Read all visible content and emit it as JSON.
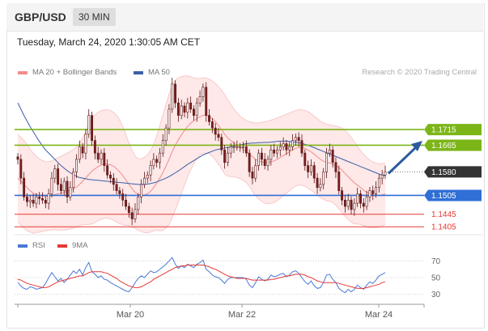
{
  "header": {
    "symbol": "GBP/USD",
    "timeframe": "30 MIN",
    "datetime": "Tuesday, March 24, 2020 1:30:05 AM CET"
  },
  "legend": {
    "ma20": "MA 20 + Bollinger Bands",
    "ma50": "MA 50",
    "credit": "Research © 2020 Trading Central"
  },
  "rsi_legend": {
    "rsi": "RSI",
    "ma9": "9MA"
  },
  "colors": {
    "resistance": "#7cb518",
    "pivot": "#2f6fd6",
    "support": "#e53935",
    "current": "#333333",
    "bollinger_fill": "#fde0e0",
    "ma20": "#f28b8b",
    "ma50": "#3b5fa8",
    "up_candle": "#ffffff",
    "down_candle": "#7a1f1f",
    "rsi": "#4a78d6",
    "rsi_ma": "#e53935",
    "arrow": "#2c5aa0"
  },
  "chart_data": [
    {
      "type": "candlestick",
      "name": "price",
      "ylim": [
        1.139,
        1.187
      ],
      "x_ticks": [
        "Mar 20",
        "Mar 22",
        "Mar 24"
      ],
      "levels": [
        {
          "value": 1.1715,
          "kind": "resistance",
          "label": "1.1715"
        },
        {
          "value": 1.1665,
          "kind": "resistance",
          "label": "1.1665"
        },
        {
          "value": 1.158,
          "kind": "current",
          "label": "1.1580"
        },
        {
          "value": 1.1505,
          "kind": "pivot",
          "label": "1.1505"
        },
        {
          "value": 1.1445,
          "kind": "support",
          "label": "1.1445"
        },
        {
          "value": 1.1405,
          "kind": "support",
          "label": "1.1405"
        }
      ],
      "close": [
        1.162,
        1.156,
        1.15,
        1.1485,
        1.149,
        1.148,
        1.15,
        1.1495,
        1.149,
        1.148,
        1.151,
        1.156,
        1.159,
        1.154,
        1.152,
        1.155,
        1.15,
        1.153,
        1.158,
        1.162,
        1.166,
        1.164,
        1.17,
        1.176,
        1.168,
        1.164,
        1.162,
        1.164,
        1.16,
        1.157,
        1.156,
        1.154,
        1.152,
        1.151,
        1.149,
        1.147,
        1.145,
        1.143,
        1.146,
        1.15,
        1.154,
        1.156,
        1.157,
        1.16,
        1.162,
        1.161,
        1.164,
        1.168,
        1.172,
        1.178,
        1.186,
        1.18,
        1.176,
        1.179,
        1.177,
        1.18,
        1.178,
        1.176,
        1.18,
        1.182,
        1.185,
        1.176,
        1.174,
        1.172,
        1.17,
        1.169,
        1.165,
        1.161,
        1.164,
        1.166,
        1.166,
        1.166,
        1.166,
        1.166,
        1.164,
        1.158,
        1.156,
        1.16,
        1.164,
        1.162,
        1.16,
        1.162,
        1.165,
        1.164,
        1.165,
        1.166,
        1.167,
        1.165,
        1.166,
        1.168,
        1.169,
        1.168,
        1.164,
        1.16,
        1.158,
        1.16,
        1.156,
        1.153,
        1.154,
        1.158,
        1.164,
        1.165,
        1.161,
        1.158,
        1.152,
        1.149,
        1.147,
        1.149,
        1.146,
        1.148,
        1.151,
        1.148,
        1.147,
        1.15,
        1.152,
        1.151,
        1.153,
        1.156,
        1.157,
        1.158
      ],
      "ma20": [
        1.156,
        1.155,
        1.154,
        1.153,
        1.152,
        1.1512,
        1.1508,
        1.1505,
        1.1503,
        1.1502,
        1.1503,
        1.1505,
        1.1508,
        1.151,
        1.1512,
        1.1515,
        1.1518,
        1.1522,
        1.1526,
        1.1532,
        1.154,
        1.155,
        1.156,
        1.1572,
        1.1582,
        1.159,
        1.1597,
        1.1602,
        1.1605,
        1.1605,
        1.1603,
        1.1598,
        1.159,
        1.158,
        1.1568,
        1.1555,
        1.154,
        1.1526,
        1.1515,
        1.1508,
        1.1506,
        1.1506,
        1.151,
        1.1518,
        1.153,
        1.1545,
        1.156,
        1.1578,
        1.1598,
        1.162,
        1.1645,
        1.1665,
        1.1682,
        1.1698,
        1.1712,
        1.1725,
        1.1735,
        1.1743,
        1.175,
        1.1756,
        1.176,
        1.176,
        1.1757,
        1.175,
        1.174,
        1.1728,
        1.1715,
        1.17,
        1.1688,
        1.168,
        1.1672,
        1.1665,
        1.1658,
        1.1652,
        1.1645,
        1.1637,
        1.1628,
        1.162,
        1.1615,
        1.1612,
        1.161,
        1.161,
        1.1612,
        1.1615,
        1.162,
        1.1626,
        1.1632,
        1.1638,
        1.1644,
        1.165,
        1.1655,
        1.1658,
        1.1658,
        1.1655,
        1.165,
        1.1644,
        1.1636,
        1.1628,
        1.162,
        1.1614,
        1.161,
        1.1608,
        1.1605,
        1.16,
        1.1593,
        1.1585,
        1.1575,
        1.1565,
        1.1555,
        1.1545,
        1.1538,
        1.153,
        1.1522,
        1.1515,
        1.151,
        1.1507,
        1.1505,
        1.1505,
        1.1507,
        1.151
      ],
      "bb_upper": [
        1.17,
        1.169,
        1.168,
        1.1668,
        1.1652,
        1.164,
        1.163,
        1.1622,
        1.1616,
        1.1612,
        1.1612,
        1.1615,
        1.162,
        1.1625,
        1.163,
        1.1635,
        1.164,
        1.1646,
        1.1652,
        1.166,
        1.1672,
        1.1688,
        1.1708,
        1.1732,
        1.175,
        1.1762,
        1.177,
        1.1775,
        1.1778,
        1.1778,
        1.1776,
        1.177,
        1.176,
        1.1745,
        1.1725,
        1.17,
        1.1672,
        1.1648,
        1.163,
        1.1622,
        1.1622,
        1.1626,
        1.1634,
        1.1648,
        1.1668,
        1.1695,
        1.1728,
        1.1762,
        1.1796,
        1.1828,
        1.1856,
        1.1872,
        1.188,
        1.1884,
        1.1886,
        1.1886,
        1.1884,
        1.188,
        1.1878,
        1.1878,
        1.188,
        1.188,
        1.1876,
        1.187,
        1.1862,
        1.1852,
        1.184,
        1.1826,
        1.181,
        1.1795,
        1.178,
        1.1768,
        1.1758,
        1.175,
        1.1744,
        1.174,
        1.1738,
        1.1736,
        1.1736,
        1.1738,
        1.174,
        1.1742,
        1.1745,
        1.1748,
        1.1752,
        1.1756,
        1.176,
        1.1764,
        1.1768,
        1.1772,
        1.1776,
        1.1778,
        1.1778,
        1.1776,
        1.1772,
        1.1766,
        1.1758,
        1.175,
        1.1742,
        1.1736,
        1.1732,
        1.173,
        1.1728,
        1.1726,
        1.1724,
        1.172,
        1.1712,
        1.1702,
        1.169,
        1.1676,
        1.1662,
        1.1648,
        1.1636,
        1.1626,
        1.1618,
        1.1612,
        1.1608,
        1.1606,
        1.1606,
        1.1608
      ],
      "bb_lower": [
        1.142,
        1.141,
        1.14,
        1.1392,
        1.1388,
        1.1384,
        1.1386,
        1.1388,
        1.139,
        1.1392,
        1.1394,
        1.1395,
        1.1396,
        1.1395,
        1.1394,
        1.1395,
        1.1396,
        1.1398,
        1.14,
        1.1404,
        1.1408,
        1.1412,
        1.1412,
        1.1412,
        1.1414,
        1.1418,
        1.1424,
        1.1429,
        1.1432,
        1.1432,
        1.143,
        1.1426,
        1.142,
        1.1415,
        1.1411,
        1.141,
        1.1408,
        1.1404,
        1.14,
        1.1394,
        1.139,
        1.1386,
        1.1386,
        1.1388,
        1.1392,
        1.1395,
        1.1392,
        1.1394,
        1.14,
        1.1412,
        1.1434,
        1.1458,
        1.1484,
        1.1512,
        1.1538,
        1.1564,
        1.1586,
        1.1606,
        1.1622,
        1.1634,
        1.164,
        1.164,
        1.1638,
        1.163,
        1.1618,
        1.1604,
        1.159,
        1.1574,
        1.1566,
        1.1565,
        1.1564,
        1.1562,
        1.1558,
        1.1554,
        1.1546,
        1.1534,
        1.1518,
        1.1504,
        1.1494,
        1.1486,
        1.148,
        1.1478,
        1.1479,
        1.1482,
        1.1488,
        1.1496,
        1.1504,
        1.1512,
        1.152,
        1.1528,
        1.1534,
        1.1538,
        1.1538,
        1.1534,
        1.1528,
        1.1522,
        1.1514,
        1.1506,
        1.1498,
        1.1492,
        1.1488,
        1.1486,
        1.1482,
        1.1474,
        1.1462,
        1.145,
        1.1438,
        1.1428,
        1.142,
        1.1414,
        1.1414,
        1.1412,
        1.1408,
        1.1404,
        1.1402,
        1.1402,
        1.1402,
        1.1404,
        1.1408,
        1.1412
      ],
      "ma50": [
        1.18,
        1.178,
        1.176,
        1.1742,
        1.1724,
        1.1708,
        1.1692,
        1.1677,
        1.1663,
        1.165,
        1.164,
        1.163,
        1.162,
        1.161,
        1.16,
        1.1592,
        1.1584,
        1.1577,
        1.1571,
        1.1566,
        1.1562,
        1.156,
        1.1558,
        1.1556,
        1.1555,
        1.1554,
        1.1553,
        1.1552,
        1.1551,
        1.155,
        1.1549,
        1.1548,
        1.1547,
        1.1546,
        1.1545,
        1.1544,
        1.1543,
        1.1542,
        1.1541,
        1.154,
        1.154,
        1.154,
        1.1541,
        1.1543,
        1.1545,
        1.1548,
        1.1552,
        1.1556,
        1.156,
        1.1565,
        1.1571,
        1.1577,
        1.1583,
        1.159,
        1.1597,
        1.1604,
        1.161,
        1.1616,
        1.1622,
        1.1628,
        1.1634,
        1.1638,
        1.1642,
        1.1646,
        1.165,
        1.1652,
        1.1654,
        1.1656,
        1.1658,
        1.166,
        1.1662,
        1.1664,
        1.1666,
        1.1668,
        1.167,
        1.1671,
        1.1672,
        1.1672,
        1.1673,
        1.1673,
        1.1674,
        1.1674,
        1.1675,
        1.1676,
        1.1677,
        1.1678,
        1.1678,
        1.1678,
        1.1677,
        1.1676,
        1.1675,
        1.1673,
        1.1671,
        1.1668,
        1.1665,
        1.1661,
        1.1657,
        1.1653,
        1.1649,
        1.1645,
        1.1641,
        1.1637,
        1.1633,
        1.1629,
        1.1625,
        1.1621,
        1.1617,
        1.1613,
        1.1609,
        1.1605,
        1.1601,
        1.1597,
        1.1593,
        1.1589,
        1.1585,
        1.1581,
        1.1577,
        1.1573,
        1.157,
        1.1568
      ]
    },
    {
      "type": "line",
      "name": "rsi",
      "ylim": [
        20,
        80
      ],
      "y_ticks": [
        70,
        50,
        30
      ],
      "series": [
        {
          "name": "RSI",
          "values": [
            44,
            40,
            37,
            36,
            39,
            38,
            36,
            37,
            38,
            43,
            50,
            56,
            51,
            46,
            49,
            44,
            48,
            53,
            58,
            55,
            60,
            53,
            62,
            68,
            57,
            54,
            50,
            52,
            48,
            47,
            44,
            42,
            40,
            38,
            36,
            34,
            33,
            38,
            44,
            49,
            52,
            50,
            54,
            58,
            56,
            57,
            60,
            63,
            66,
            70,
            74,
            66,
            61,
            64,
            62,
            66,
            64,
            62,
            66,
            68,
            71,
            60,
            57,
            53,
            51,
            50,
            47,
            43,
            48,
            50,
            50,
            50,
            50,
            50,
            48,
            41,
            38,
            44,
            51,
            48,
            46,
            48,
            53,
            51,
            52,
            54,
            55,
            51,
            53,
            57,
            58,
            55,
            50,
            45,
            42,
            46,
            40,
            37,
            38,
            44,
            53,
            54,
            48,
            44,
            37,
            34,
            32,
            36,
            33,
            36,
            41,
            38,
            36,
            41,
            45,
            43,
            47,
            52,
            54,
            56
          ]
        },
        {
          "name": "9MA",
          "values": [
            48,
            47,
            45,
            43,
            42,
            41,
            40,
            39,
            38,
            38,
            39,
            41,
            43,
            45,
            46,
            47,
            48,
            49,
            50,
            51,
            52,
            52,
            54,
            56,
            57,
            57,
            57,
            57,
            56,
            55,
            53,
            51,
            49,
            46,
            44,
            42,
            40,
            39,
            38,
            38,
            39,
            41,
            43,
            45,
            48,
            50,
            52,
            54,
            56,
            58,
            60,
            62,
            63,
            64,
            64,
            65,
            65,
            65,
            65,
            65,
            65,
            64,
            63,
            61,
            60,
            58,
            56,
            54,
            52,
            51,
            50,
            49,
            49,
            49,
            49,
            48,
            47,
            47,
            47,
            47,
            47,
            47,
            48,
            48,
            49,
            50,
            51,
            52,
            52,
            53,
            54,
            54,
            54,
            53,
            51,
            50,
            48,
            46,
            45,
            44,
            44,
            44,
            44,
            44,
            43,
            42,
            41,
            40,
            39,
            38,
            37,
            37,
            37,
            38,
            39,
            40,
            41,
            42,
            44,
            45
          ]
        }
      ]
    }
  ]
}
